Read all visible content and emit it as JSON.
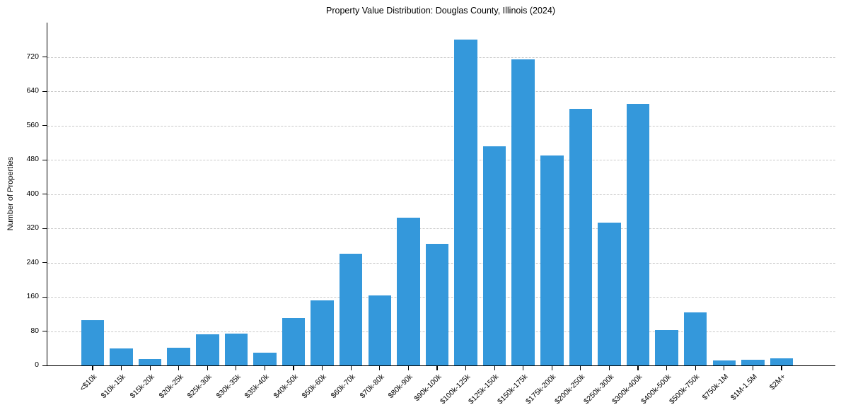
{
  "chart_data": {
    "type": "bar",
    "title": "Property Value Distribution: Douglas County, Illinois (2024)",
    "xlabel": "",
    "ylabel": "Number of Properties",
    "categories": [
      "<$10k",
      "$10k-15k",
      "$15k-20k",
      "$20k-25k",
      "$25k-30k",
      "$30k-35k",
      "$35k-40k",
      "$40k-50k",
      "$50k-60k",
      "$60k-70k",
      "$70k-80k",
      "$80k-90k",
      "$90k-100k",
      "$100k-125k",
      "$125k-150k",
      "$150k-175k",
      "$175k-200k",
      "$200k-250k",
      "$250k-300k",
      "$300k-400k",
      "$400k-500k",
      "$500k-750k",
      "$750k-1M",
      "$1M-1.5M",
      "$2M+"
    ],
    "values": [
      105,
      40,
      15,
      42,
      72,
      75,
      30,
      110,
      152,
      260,
      164,
      345,
      284,
      760,
      511,
      714,
      490,
      598,
      333,
      610,
      82,
      124,
      12,
      14,
      17
    ],
    "yticks": [
      0,
      80,
      160,
      240,
      320,
      400,
      480,
      560,
      640,
      720
    ],
    "ylim": [
      0,
      800
    ],
    "grid": "horizontal-dashed",
    "gridline_color": "#c9c9c9",
    "bar_color": "#3498db",
    "background_color": "#ffffff",
    "legend": "none"
  }
}
